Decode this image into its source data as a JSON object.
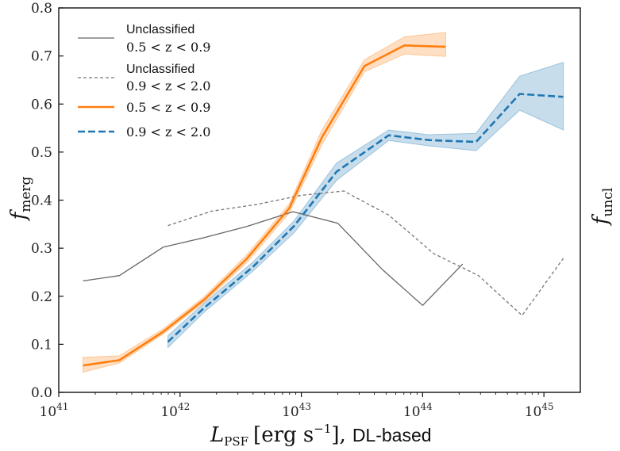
{
  "chart_data": {
    "type": "line",
    "x_scale": "log",
    "xlim_log10": [
      41,
      45.3
    ],
    "ylim": [
      0,
      0.8
    ],
    "x_ticks": [
      {
        "log10": 41,
        "base": "10",
        "exp": "41"
      },
      {
        "log10": 42,
        "base": "10",
        "exp": "42"
      },
      {
        "log10": 43,
        "base": "10",
        "exp": "43"
      },
      {
        "log10": 44,
        "base": "10",
        "exp": "44"
      },
      {
        "log10": 45,
        "base": "10",
        "exp": "45"
      }
    ],
    "y_ticks": [
      "0.0",
      "0.1",
      "0.2",
      "0.3",
      "0.4",
      "0.5",
      "0.6",
      "0.7",
      "0.8"
    ],
    "xlabel": {
      "main": "L",
      "sub": "PSF",
      "unit_open": "[erg s",
      "unit_exp": "−1",
      "unit_close": "],",
      "suffix": "DL-based"
    },
    "ylabel_left": {
      "main": "f",
      "sub": "merg"
    },
    "ylabel_right": {
      "main": "f",
      "sub": "uncl"
    },
    "legend": [
      {
        "label": "Unclassified",
        "range": "0.5 < z < 0.9",
        "color": "#666666",
        "style": "solid"
      },
      {
        "label": "Unclassified",
        "range": "0.9 < z < 2.0",
        "color": "#777777",
        "style": "dashed"
      },
      {
        "label": "",
        "range": "0.5 < z < 0.9",
        "color": "#ff7f0e",
        "style": "solid"
      },
      {
        "label": "",
        "range": "0.9 < z < 2.0",
        "color": "#1f77b4",
        "style": "dashed"
      }
    ],
    "series": [
      {
        "name": "Unclassified 0.5 < z < 0.9",
        "color": "#666666",
        "style": "solid",
        "x_log10": [
          41.2,
          41.5,
          41.86,
          42.2,
          42.55,
          42.93,
          43.3,
          43.67,
          44.0,
          44.33
        ],
        "y": [
          0.232,
          0.243,
          0.302,
          0.322,
          0.345,
          0.376,
          0.352,
          0.255,
          0.181,
          0.267
        ]
      },
      {
        "name": "Unclassified 0.9 < z < 2.0",
        "color": "#777777",
        "style": "dashed",
        "x_log10": [
          41.9,
          42.26,
          42.63,
          43.0,
          43.35,
          43.72,
          44.09,
          44.46,
          44.82,
          45.16
        ],
        "y": [
          0.347,
          0.377,
          0.391,
          0.41,
          0.419,
          0.369,
          0.289,
          0.243,
          0.16,
          0.279
        ]
      },
      {
        "name": "0.5 < z < 0.9",
        "color": "#ff7f0e",
        "style": "solid",
        "x_log10": [
          41.2,
          41.5,
          41.86,
          42.2,
          42.55,
          42.9,
          43.17,
          43.52,
          43.85,
          44.19
        ],
        "y": [
          0.056,
          0.067,
          0.126,
          0.193,
          0.278,
          0.383,
          0.531,
          0.679,
          0.722,
          0.719
        ],
        "lower": [
          0.042,
          0.061,
          0.121,
          0.188,
          0.27,
          0.373,
          0.516,
          0.667,
          0.704,
          0.699
        ],
        "upper": [
          0.073,
          0.076,
          0.132,
          0.199,
          0.286,
          0.392,
          0.546,
          0.692,
          0.74,
          0.749
        ]
      },
      {
        "name": "0.9 < z < 2.0",
        "color": "#1f77b4",
        "style": "dashed",
        "x_log10": [
          41.9,
          42.2,
          42.6,
          42.94,
          43.29,
          43.72,
          44.05,
          44.44,
          44.8,
          45.16
        ],
        "y": [
          0.105,
          0.176,
          0.261,
          0.346,
          0.459,
          0.535,
          0.525,
          0.521,
          0.621,
          0.615
        ],
        "lower": [
          0.093,
          0.167,
          0.252,
          0.332,
          0.441,
          0.524,
          0.513,
          0.503,
          0.587,
          0.546
        ],
        "upper": [
          0.118,
          0.186,
          0.271,
          0.357,
          0.477,
          0.546,
          0.536,
          0.539,
          0.658,
          0.687
        ]
      }
    ]
  }
}
